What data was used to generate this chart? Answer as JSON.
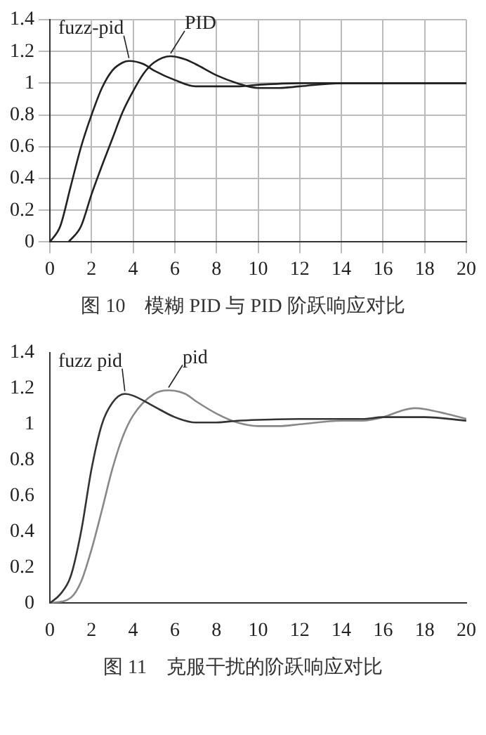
{
  "chart_data": [
    {
      "type": "line",
      "xlim": [
        0,
        20
      ],
      "ylim": [
        0,
        1.4
      ],
      "xticks": [
        0,
        2,
        4,
        6,
        8,
        10,
        12,
        14,
        16,
        18,
        20
      ],
      "yticks": [
        0,
        0.2,
        0.4,
        0.6,
        0.8,
        1,
        1.2,
        1.4
      ],
      "grid": true,
      "marker": "none",
      "line_style": "solid",
      "annotations": [
        "图 10　模糊 PID 与 PID 阶跃响应对比"
      ],
      "series": [
        {
          "name": "fuzz-pid",
          "color": "#222222",
          "x": [
            0,
            0.5,
            1,
            1.5,
            2,
            2.5,
            3,
            3.5,
            3.8,
            4.5,
            5,
            6,
            7,
            8,
            9,
            10,
            12,
            14,
            16,
            18,
            20
          ],
          "values": [
            0,
            0.1,
            0.35,
            0.6,
            0.8,
            0.97,
            1.08,
            1.13,
            1.14,
            1.12,
            1.08,
            1.02,
            0.98,
            0.98,
            0.98,
            0.99,
            1,
            1,
            1,
            1,
            1
          ]
        },
        {
          "name": "PID",
          "color": "#222222",
          "x": [
            0.9,
            1.5,
            2,
            2.5,
            3,
            3.5,
            4,
            4.5,
            5,
            5.8,
            6.5,
            7,
            8,
            9,
            10,
            11,
            12,
            14,
            16,
            18,
            20
          ],
          "values": [
            0,
            0.1,
            0.3,
            0.48,
            0.65,
            0.82,
            0.95,
            1.06,
            1.13,
            1.17,
            1.15,
            1.12,
            1.05,
            1,
            0.97,
            0.97,
            0.98,
            1,
            1,
            1,
            1
          ]
        }
      ]
    },
    {
      "type": "line",
      "xlim": [
        0,
        20
      ],
      "ylim": [
        0,
        1.4
      ],
      "xticks": [
        0,
        2,
        4,
        6,
        8,
        10,
        12,
        14,
        16,
        18,
        20
      ],
      "yticks": [
        0,
        0.2,
        0.4,
        0.6,
        0.8,
        1,
        1.2,
        1.4
      ],
      "marker": "none",
      "line_style": "solid",
      "annotations": [
        "图 11　克服干扰的阶跃响应对比"
      ],
      "series": [
        {
          "name": "fuzz pid",
          "color": "#333333",
          "x": [
            0,
            0.5,
            1,
            1.5,
            2,
            2.5,
            3,
            3.6,
            4,
            5,
            6,
            7,
            8,
            9,
            10,
            12,
            14,
            15,
            16,
            18,
            20
          ],
          "values": [
            0,
            0.05,
            0.15,
            0.4,
            0.75,
            1,
            1.12,
            1.17,
            1.16,
            1.1,
            1.04,
            1.01,
            1.01,
            1.02,
            1.025,
            1.03,
            1.03,
            1.03,
            1.04,
            1.04,
            1.02
          ]
        },
        {
          "name": "pid",
          "color": "#888888",
          "x": [
            0,
            1,
            1.5,
            2,
            2.5,
            3,
            3.5,
            4,
            5,
            5.7,
            6.5,
            7,
            8,
            9,
            10,
            11,
            12,
            14,
            15,
            16,
            17,
            17.5,
            18,
            19,
            20
          ],
          "values": [
            0,
            0.03,
            0.12,
            0.3,
            0.52,
            0.75,
            0.93,
            1.05,
            1.17,
            1.19,
            1.17,
            1.13,
            1.06,
            1.01,
            0.99,
            0.99,
            1,
            1.02,
            1.02,
            1.04,
            1.08,
            1.09,
            1.085,
            1.06,
            1.03
          ]
        }
      ]
    }
  ]
}
